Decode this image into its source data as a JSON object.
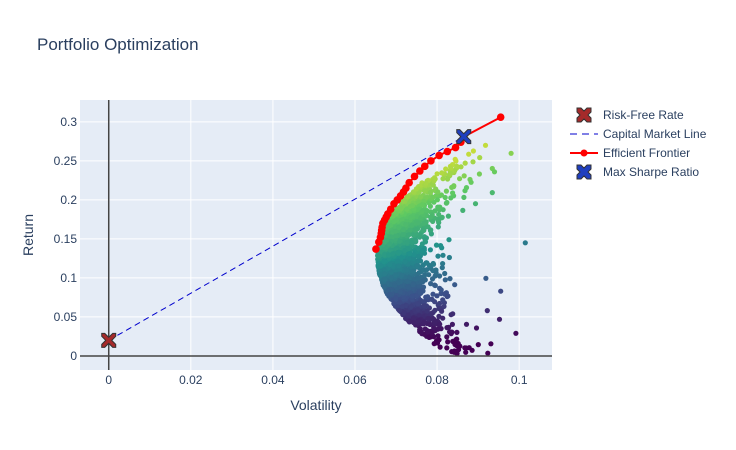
{
  "chart_data": {
    "type": "scatter",
    "title": "Portfolio Optimization",
    "xlabel": "Volatility",
    "ylabel": "Return",
    "xlim": [
      -0.007,
      0.108
    ],
    "ylim": [
      -0.018,
      0.328
    ],
    "x_ticks": [
      0,
      0.02,
      0.04,
      0.06,
      0.08,
      0.1
    ],
    "y_ticks": [
      0,
      0.05,
      0.1,
      0.15,
      0.2,
      0.25,
      0.3
    ],
    "x_tick_labels": [
      "0",
      "0.02",
      "0.04",
      "0.06",
      "0.08",
      "0.1"
    ],
    "y_tick_labels": [
      "0",
      "0.05",
      "0.1",
      "0.15",
      "0.2",
      "0.25",
      "0.3"
    ],
    "grid": true,
    "legend_position": "right",
    "colors": {
      "plot_bg": "#e5ecf6",
      "grid": "#ffffff",
      "zero_line": "#444444",
      "risk_free": "#a52a2a",
      "cml": "#0000cd",
      "frontier": "#ff0000",
      "max_sharpe": "#1f3fbf",
      "colorscale": [
        "#440154",
        "#3b528b",
        "#21918c",
        "#5ec962",
        "#fde725"
      ]
    },
    "series": [
      {
        "name": "Risk-Free Rate",
        "mode": "marker",
        "marker": "x",
        "x": [
          0
        ],
        "y": [
          0.02
        ]
      },
      {
        "name": "Capital Market Line",
        "mode": "dashed-line",
        "x": [
          0,
          0.0865
        ],
        "y": [
          0.02,
          0.281
        ]
      },
      {
        "name": "Efficient Frontier",
        "mode": "lines+markers",
        "x": [
          0.0651,
          0.0658,
          0.0662,
          0.0664,
          0.0665,
          0.0666,
          0.0668,
          0.0672,
          0.0676,
          0.068,
          0.0687,
          0.0695,
          0.0703,
          0.0711,
          0.0718,
          0.0724,
          0.0732,
          0.0745,
          0.0758,
          0.077,
          0.0785,
          0.0805,
          0.0825,
          0.0845,
          0.0858,
          0.0865,
          0.0955
        ],
        "y": [
          0.137,
          0.146,
          0.152,
          0.157,
          0.161,
          0.165,
          0.17,
          0.174,
          0.178,
          0.182,
          0.188,
          0.195,
          0.2,
          0.205,
          0.21,
          0.215,
          0.222,
          0.23,
          0.237,
          0.243,
          0.25,
          0.257,
          0.262,
          0.267,
          0.274,
          0.281,
          0.306
        ]
      },
      {
        "name": "Max Sharpe Ratio",
        "mode": "marker",
        "marker": "x",
        "x": [
          0.0865
        ],
        "y": [
          0.281
        ]
      }
    ],
    "cloud": {
      "description_values": "random portfolio simulations, colored by Sharpe ratio",
      "point_count": 2600,
      "return_range": [
        0.003,
        0.27
      ],
      "volatility_range": [
        0.065,
        0.102
      ]
    }
  }
}
